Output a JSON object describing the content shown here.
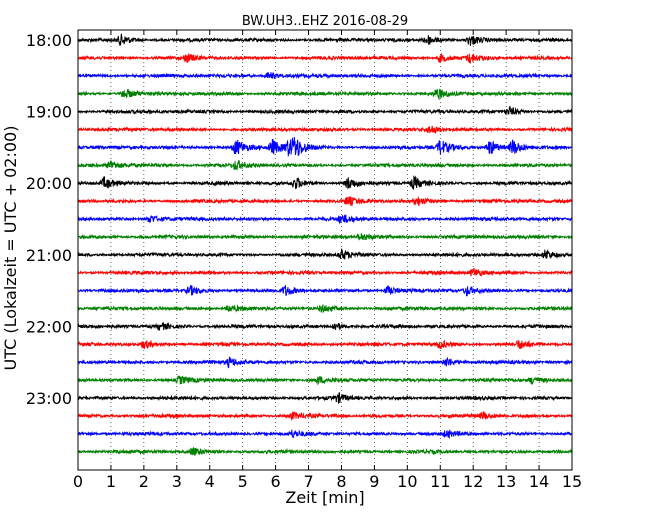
{
  "chart_data": {
    "type": "line",
    "title": "BW.UH3..EHZ 2016-08-29",
    "xlabel": "Zeit  [min]",
    "ylabel": "UTC (Lokalzeit = UTC + 02:00)",
    "xlim": [
      0,
      15
    ],
    "x_ticks": [
      0,
      1,
      2,
      3,
      4,
      5,
      6,
      7,
      8,
      9,
      10,
      11,
      12,
      13,
      14,
      15
    ],
    "x_grid": "dotted vertical lines at each minute",
    "y_ticks": [
      "18:00",
      "19:00",
      "20:00",
      "21:00",
      "22:00",
      "23:00"
    ],
    "colors": [
      "#000000",
      "#ff0000",
      "#0000ff",
      "#008000"
    ],
    "trace_interval_min": 15,
    "series": [
      {
        "row_start": "18:00",
        "color": "#000000",
        "events_min": [
          1.3,
          10.6,
          11.9
        ],
        "amp": 0.7
      },
      {
        "row_start": "18:15",
        "color": "#ff0000",
        "events_min": [
          3.3,
          11.0,
          11.9
        ],
        "amp": 0.55
      },
      {
        "row_start": "18:30",
        "color": "#0000ff",
        "events_min": [
          5.8
        ],
        "amp": 0.5
      },
      {
        "row_start": "18:45",
        "color": "#008000",
        "events_min": [
          1.4,
          10.9
        ],
        "amp": 0.65
      },
      {
        "row_start": "19:00",
        "color": "#000000",
        "events_min": [
          13.1
        ],
        "amp": 0.55
      },
      {
        "row_start": "19:15",
        "color": "#ff0000",
        "events_min": [
          10.7
        ],
        "amp": 0.5
      },
      {
        "row_start": "19:30",
        "color": "#0000ff",
        "events_min": [
          4.8,
          5.9,
          6.4,
          6.6,
          11.0,
          12.5,
          13.2
        ],
        "amp": 1.0
      },
      {
        "row_start": "19:45",
        "color": "#008000",
        "events_min": [
          1.0,
          4.8
        ],
        "amp": 0.6
      },
      {
        "row_start": "20:00",
        "color": "#000000",
        "events_min": [
          0.8,
          6.6,
          8.2,
          10.2
        ],
        "amp": 0.75
      },
      {
        "row_start": "20:15",
        "color": "#ff0000",
        "events_min": [
          8.2,
          10.3
        ],
        "amp": 0.55
      },
      {
        "row_start": "20:30",
        "color": "#0000ff",
        "events_min": [
          2.2,
          8.0
        ],
        "amp": 0.55
      },
      {
        "row_start": "20:45",
        "color": "#008000",
        "events_min": [
          8.6
        ],
        "amp": 0.45
      },
      {
        "row_start": "21:00",
        "color": "#000000",
        "events_min": [
          8.0,
          14.2
        ],
        "amp": 0.7
      },
      {
        "row_start": "21:15",
        "color": "#ff0000",
        "events_min": [
          12.0
        ],
        "amp": 0.55
      },
      {
        "row_start": "21:30",
        "color": "#0000ff",
        "events_min": [
          3.4,
          6.3,
          9.4,
          11.8
        ],
        "amp": 0.6
      },
      {
        "row_start": "21:45",
        "color": "#008000",
        "events_min": [
          4.6,
          7.4
        ],
        "amp": 0.45
      },
      {
        "row_start": "22:00",
        "color": "#000000",
        "events_min": [
          2.5,
          7.8
        ],
        "amp": 0.5
      },
      {
        "row_start": "22:15",
        "color": "#ff0000",
        "events_min": [
          2.0,
          11.0,
          13.4
        ],
        "amp": 0.5
      },
      {
        "row_start": "22:30",
        "color": "#0000ff",
        "events_min": [
          4.6,
          11.2
        ],
        "amp": 0.6
      },
      {
        "row_start": "22:45",
        "color": "#008000",
        "events_min": [
          3.1,
          7.3,
          13.8
        ],
        "amp": 0.45
      },
      {
        "row_start": "23:00",
        "color": "#000000",
        "events_min": [
          7.9
        ],
        "amp": 0.55
      },
      {
        "row_start": "23:15",
        "color": "#ff0000",
        "events_min": [
          6.5,
          12.3
        ],
        "amp": 0.45
      },
      {
        "row_start": "23:30",
        "color": "#0000ff",
        "events_min": [
          6.5,
          11.2
        ],
        "amp": 0.4
      },
      {
        "row_start": "23:45",
        "color": "#008000",
        "events_min": [
          3.5
        ],
        "amp": 0.55
      }
    ]
  }
}
